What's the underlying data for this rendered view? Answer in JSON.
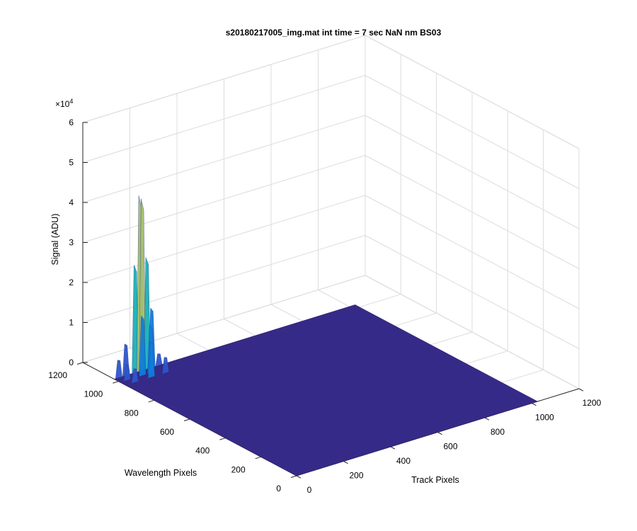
{
  "chart_data": {
    "type": "surface",
    "title": "s20180217005_img.mat int time = 7 sec  NaN nm BS03",
    "xlabel": "Track Pixels",
    "ylabel": "Wavelength Pixels",
    "zlabel": "Signal (ADU)",
    "z_exponent_label": "×10",
    "z_exponent_power": "4",
    "xlim": [
      0,
      1200
    ],
    "ylim": [
      0,
      1200
    ],
    "zlim": [
      0,
      60000
    ],
    "x_ticks": [
      "0",
      "200",
      "400",
      "600",
      "800",
      "1000",
      "1200"
    ],
    "y_ticks": [
      "0",
      "200",
      "400",
      "600",
      "800",
      "1000",
      "1200"
    ],
    "z_ticks": [
      "0",
      "1",
      "2",
      "3",
      "4",
      "5",
      "6"
    ],
    "grid": true,
    "surface_extent": {
      "x": [
        0,
        1024
      ],
      "y": [
        0,
        1024
      ]
    },
    "baseline_signal": 0,
    "peaks": [
      {
        "track": 20,
        "wavelength": 1024,
        "signal": 4500
      },
      {
        "track": 50,
        "wavelength": 1024,
        "signal": 8000
      },
      {
        "track": 90,
        "wavelength": 1024,
        "signal": 27000
      },
      {
        "track": 110,
        "wavelength": 1024,
        "signal": 44000
      },
      {
        "track": 120,
        "wavelength": 1024,
        "signal": 43000
      },
      {
        "track": 140,
        "wavelength": 1024,
        "signal": 28000
      },
      {
        "track": 160,
        "wavelength": 1024,
        "signal": 15000
      },
      {
        "track": 190,
        "wavelength": 1024,
        "signal": 3000
      },
      {
        "track": 30,
        "wavelength": 990,
        "signal": 4000
      },
      {
        "track": 95,
        "wavelength": 990,
        "signal": 15000
      },
      {
        "track": 130,
        "wavelength": 990,
        "signal": 12000
      },
      {
        "track": 40,
        "wavelength": 960,
        "signal": 3500
      },
      {
        "track": 110,
        "wavelength": 960,
        "signal": 9000
      },
      {
        "track": 170,
        "wavelength": 960,
        "signal": 4000
      }
    ],
    "colors": {
      "low": "#352a87",
      "mid": "#0f7ddb",
      "high": "#19b2b5",
      "peak": "#a5be6a",
      "grid": "#dcdcdc",
      "axis": "#262626"
    }
  }
}
